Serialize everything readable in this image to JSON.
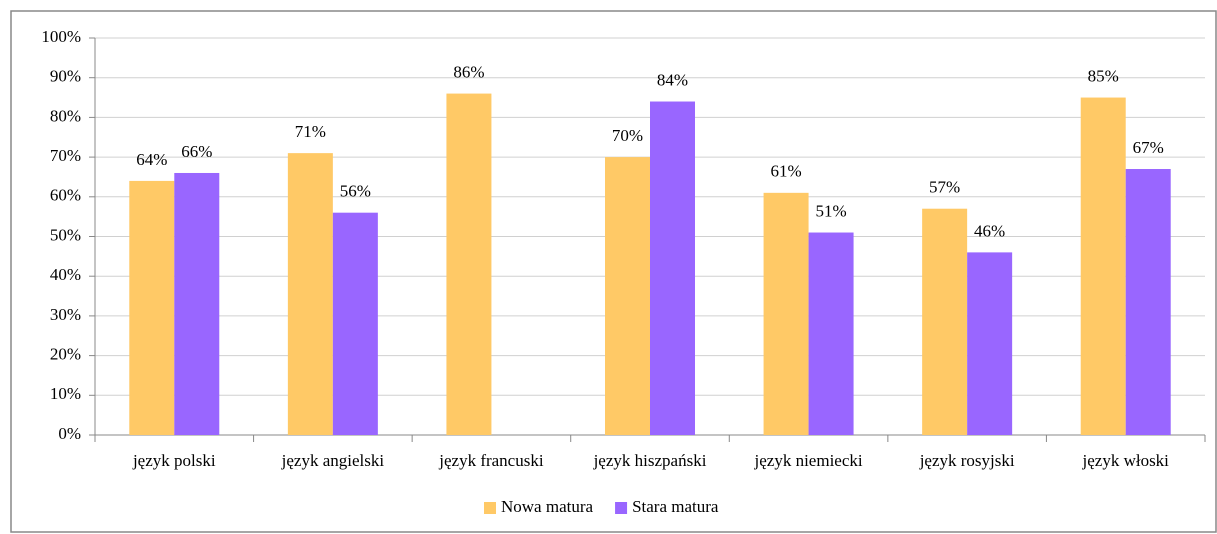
{
  "chart_data": {
    "type": "bar",
    "categories": [
      "język polski",
      "język angielski",
      "język francuski",
      "język hiszpański",
      "język niemiecki",
      "język rosyjski",
      "język włoski"
    ],
    "series": [
      {
        "name": "Nowa matura",
        "color": "#ffc966",
        "values": [
          64,
          71,
          86,
          70,
          61,
          57,
          85
        ],
        "value_labels": [
          "64%",
          "71%",
          "86%",
          "70%",
          "61%",
          "57%",
          "85%"
        ]
      },
      {
        "name": "Stara matura",
        "color": "#9966ff",
        "values": [
          66,
          56,
          null,
          84,
          51,
          46,
          67
        ],
        "value_labels": [
          "66%",
          "56%",
          null,
          "84%",
          "51%",
          "46%",
          "67%"
        ]
      }
    ],
    "ylim": [
      0,
      100
    ],
    "yticks": [
      {
        "value": 0,
        "label": "0%"
      },
      {
        "value": 10,
        "label": "10%"
      },
      {
        "value": 20,
        "label": "20%"
      },
      {
        "value": 30,
        "label": "30%"
      },
      {
        "value": 40,
        "label": "40%"
      },
      {
        "value": 50,
        "label": "50%"
      },
      {
        "value": 60,
        "label": "60%"
      },
      {
        "value": 70,
        "label": "70%"
      },
      {
        "value": 80,
        "label": "80%"
      },
      {
        "value": 90,
        "label": "90%"
      },
      {
        "value": 100,
        "label": "100%"
      }
    ],
    "grid": true,
    "legend": "bottom"
  }
}
